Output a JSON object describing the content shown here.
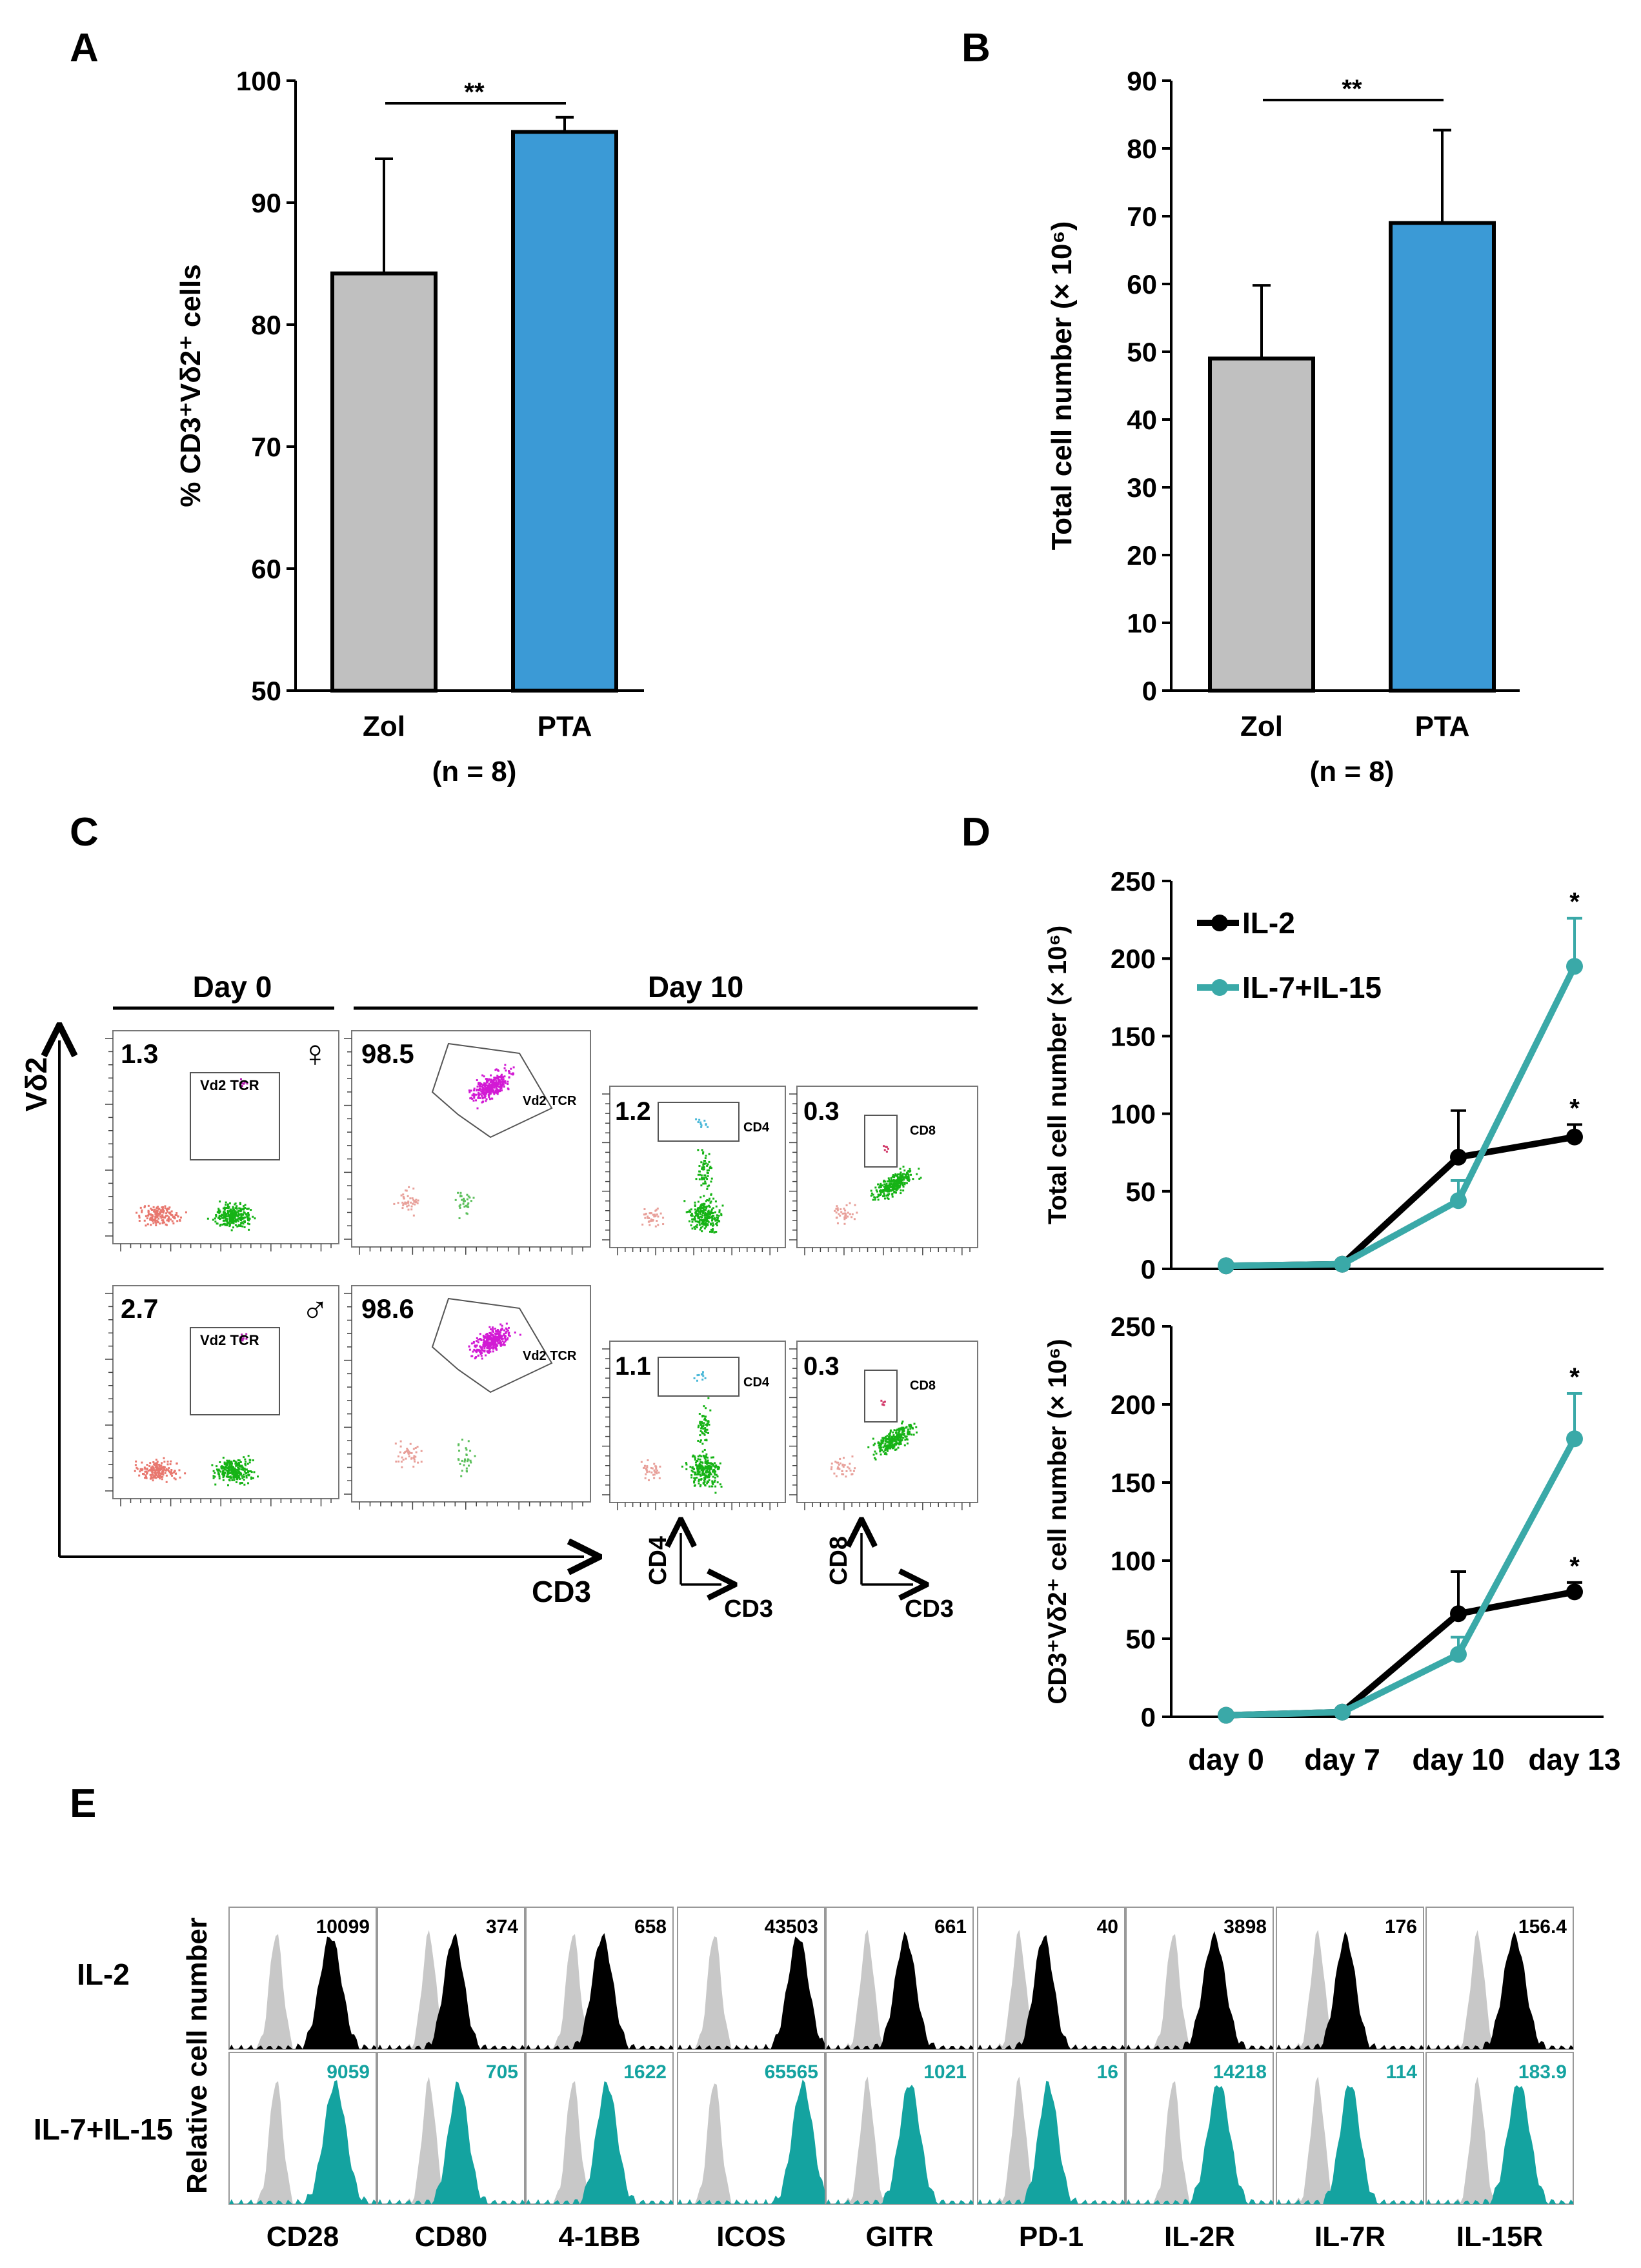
{
  "chart_data": [
    {
      "panel": "A",
      "type": "bar",
      "categories": [
        "Zol",
        "PTA"
      ],
      "values": [
        84.2,
        95.8
      ],
      "errors": [
        9.4,
        1.2
      ],
      "colors": [
        "#c0c0c0",
        "#3b9ad6"
      ],
      "ylabel": "% CD3⁺Vδ2⁺ cells",
      "ylim": [
        50,
        100
      ],
      "yticks": [
        "50",
        "60",
        "70",
        "80",
        "90",
        "100"
      ],
      "xnote": "(n = 8)",
      "significance": "**"
    },
    {
      "panel": "B",
      "type": "bar",
      "categories": [
        "Zol",
        "PTA"
      ],
      "values": [
        49,
        69
      ],
      "errors": [
        10.8,
        13.7
      ],
      "colors": [
        "#c0c0c0",
        "#3b9ad6"
      ],
      "ylabel": "Total cell number (× 10⁶)",
      "ylim": [
        0,
        90
      ],
      "yticks": [
        "0",
        "10",
        "20",
        "30",
        "40",
        "50",
        "60",
        "70",
        "80",
        "90"
      ],
      "xnote": "(n = 8)",
      "significance": "**"
    },
    {
      "panel": "D-top",
      "type": "line",
      "categories": [
        "day 0",
        "day 7",
        "day 10",
        "day 13"
      ],
      "ylabel": "Total cell number (× 10⁶)",
      "ylim": [
        0,
        250
      ],
      "yticks": [
        "0",
        "50",
        "100",
        "150",
        "200",
        "250"
      ],
      "series": [
        {
          "name": "IL-2",
          "color": "#000000",
          "values": [
            2,
            3,
            72,
            85
          ],
          "errors": [
            0,
            0,
            30,
            8
          ],
          "stars": [
            null,
            null,
            null,
            "*"
          ]
        },
        {
          "name": "IL-7+IL-15",
          "color": "#3aa9a8",
          "values": [
            2,
            3,
            44,
            195
          ],
          "errors": [
            0,
            0,
            13,
            31
          ],
          "stars": [
            null,
            null,
            null,
            "*"
          ]
        }
      ]
    },
    {
      "panel": "D-bottom",
      "type": "line",
      "categories": [
        "day 0",
        "day 7",
        "day 10",
        "day 13"
      ],
      "ylabel": "CD3⁺Vδ2⁺ cell number (× 10⁶)",
      "ylim": [
        0,
        250
      ],
      "yticks": [
        "0",
        "50",
        "100",
        "150",
        "200",
        "250"
      ],
      "series": [
        {
          "name": "IL-2",
          "color": "#000000",
          "values": [
            1,
            3,
            66,
            80
          ],
          "errors": [
            0,
            0,
            27,
            6
          ],
          "stars": [
            null,
            null,
            null,
            "*"
          ]
        },
        {
          "name": "IL-7+IL-15",
          "color": "#3aa9a8",
          "values": [
            1,
            3,
            40,
            178
          ],
          "errors": [
            0,
            0,
            11,
            29
          ],
          "stars": [
            null,
            null,
            null,
            "*"
          ]
        }
      ]
    }
  ],
  "panel_labels": {
    "a": "A",
    "b": "B",
    "c": "C",
    "d": "D",
    "e": "E"
  },
  "flow": {
    "day0": "Day 0",
    "day10": "Day 10",
    "yaxis": "Vδ2",
    "xaxis": "CD3",
    "female": "♀",
    "male": "♂",
    "gate_vd2": "Vd2 TCR",
    "gate_cd4": "CD4",
    "gate_cd8": "CD8",
    "axis_cd4": "CD4",
    "axis_cd8": "CD8",
    "axis_cd3": "CD3",
    "rows": [
      {
        "v1": "1.3",
        "v2": "98.5",
        "v3": "1.2",
        "v4": "0.3"
      },
      {
        "v1": "2.7",
        "v2": "98.6",
        "v3": "1.1",
        "v4": "0.3"
      }
    ]
  },
  "histograms": {
    "ylabel": "Relative cell number",
    "row_labels": [
      "IL-2",
      "IL-7+IL-15"
    ],
    "markers": [
      "CD28",
      "CD80",
      "4-1BB",
      "ICOS",
      "GITR",
      "PD-1",
      "IL-2R",
      "IL-7R",
      "IL-15R"
    ],
    "values_il2": [
      "10099",
      "374",
      "658",
      "43503",
      "661",
      "40",
      "3898",
      "176",
      "156.4"
    ],
    "values_il715": [
      "9059",
      "705",
      "1622",
      "65565",
      "1021",
      "16",
      "14218",
      "114",
      "183.9"
    ],
    "colors": {
      "il2": "#000000",
      "il715": "#14a3a0",
      "control": "#c8c8c8"
    }
  }
}
